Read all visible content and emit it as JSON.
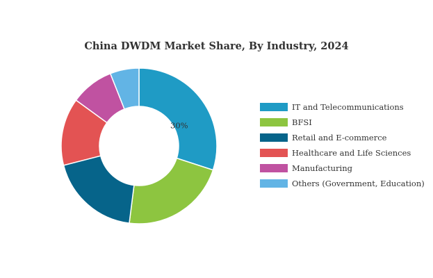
{
  "chart_data": {
    "type": "pie",
    "title": "China DWDM Market Share, By Industry, 2024",
    "donut": true,
    "legend_position": "right",
    "series": [
      {
        "name": "IT and Telecommunications",
        "value": 30,
        "color": "#1f9bc5",
        "label": "30%"
      },
      {
        "name": "BFSI",
        "value": 22,
        "color": "#8dc540",
        "label": ""
      },
      {
        "name": "Retail and E-commerce",
        "value": 19,
        "color": "#06648a",
        "label": ""
      },
      {
        "name": "Healthcare and Life Sciences",
        "value": 14,
        "color": "#e35353",
        "label": ""
      },
      {
        "name": "Manufacturing",
        "value": 9,
        "color": "#c052a1",
        "label": ""
      },
      {
        "name": "Others (Government, Education)",
        "value": 6,
        "color": "#62b4e5",
        "label": ""
      }
    ]
  }
}
